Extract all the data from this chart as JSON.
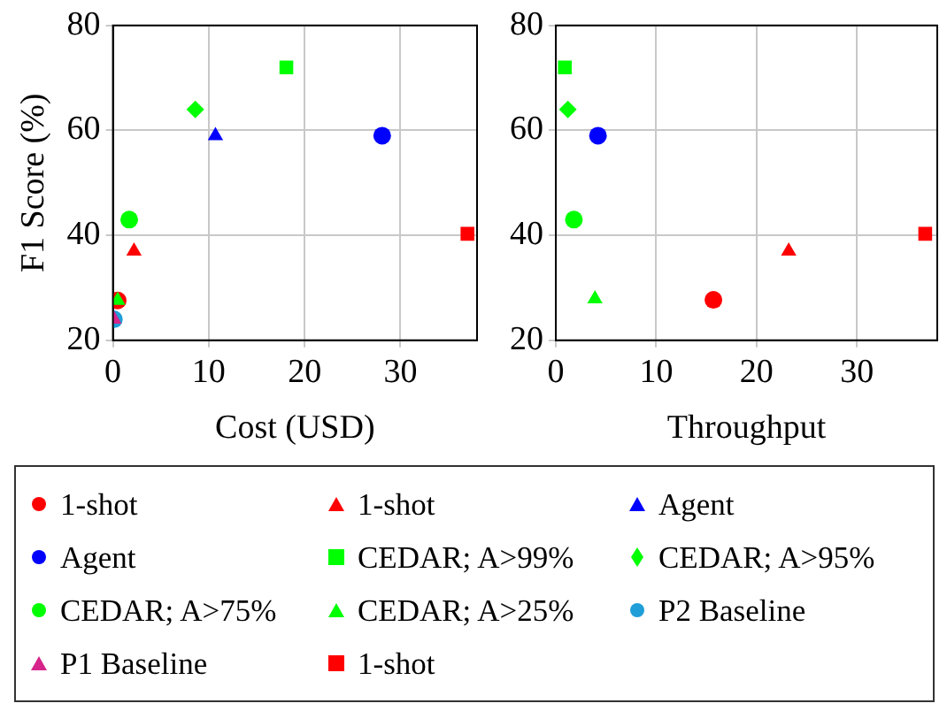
{
  "chart_data": [
    {
      "type": "scatter",
      "xlabel": "Cost (USD)",
      "ylabel": "F1 Score (%)",
      "xlim": [
        0,
        38
      ],
      "xticks": [
        0,
        10,
        20,
        30
      ],
      "ylim": [
        20,
        80
      ],
      "yticks": [
        20,
        40,
        60,
        80
      ],
      "grid": true,
      "legend": "bottom",
      "series": [
        {
          "name": "1-shot",
          "color": "#ff0000",
          "marker": "circle",
          "x": [
            0.5
          ],
          "values": [
            27.6
          ]
        },
        {
          "name": "1-shot",
          "color": "#ff0000",
          "marker": "triangle",
          "x": [
            2.2
          ],
          "values": [
            37
          ]
        },
        {
          "name": "Agent",
          "color": "#0000ff",
          "marker": "triangle",
          "x": [
            10.7
          ],
          "values": [
            59
          ]
        },
        {
          "name": "Agent",
          "color": "#0000ff",
          "marker": "circle",
          "x": [
            28.1
          ],
          "values": [
            59
          ]
        },
        {
          "name": "CEDAR; A>99%",
          "color": "#00ff00",
          "marker": "square",
          "x": [
            18.1
          ],
          "values": [
            72
          ]
        },
        {
          "name": "CEDAR; A>95%",
          "color": "#00ff00",
          "marker": "diamond",
          "x": [
            8.6
          ],
          "values": [
            64
          ]
        },
        {
          "name": "CEDAR; A>75%",
          "color": "#00ff00",
          "marker": "circle",
          "x": [
            1.7
          ],
          "values": [
            43
          ]
        },
        {
          "name": "CEDAR; A>25%",
          "color": "#00ff00",
          "marker": "triangle",
          "x": [
            0.5
          ],
          "values": [
            27.6
          ]
        },
        {
          "name": "P2 Baseline",
          "color": "#1f9ed8",
          "marker": "circle",
          "x": [
            0.1
          ],
          "values": [
            24
          ]
        },
        {
          "name": "P1 Baseline",
          "color": "#d6258a",
          "marker": "triangle",
          "x": [
            0.1
          ],
          "values": [
            24
          ]
        },
        {
          "name": "1-shot",
          "color": "#ff0000",
          "marker": "square",
          "x": [
            37
          ],
          "values": [
            40.3
          ]
        }
      ]
    },
    {
      "type": "scatter",
      "xlabel": "Throughput",
      "xlim": [
        0,
        38
      ],
      "xticks": [
        0,
        10,
        20,
        30
      ],
      "ylim": [
        20,
        80
      ],
      "yticks": [
        20,
        40,
        60,
        80
      ],
      "grid": true,
      "series": [
        {
          "color": "#ff0000",
          "marker": "circle",
          "x": [
            15.7
          ],
          "values": [
            27.7
          ]
        },
        {
          "color": "#ff0000",
          "marker": "triangle",
          "x": [
            23.2
          ],
          "values": [
            37
          ]
        },
        {
          "color": "#0000ff",
          "marker": "circle",
          "x": [
            4.2
          ],
          "values": [
            59
          ]
        },
        {
          "color": "#00ff00",
          "marker": "square",
          "x": [
            0.9
          ],
          "values": [
            72
          ]
        },
        {
          "color": "#00ff00",
          "marker": "diamond",
          "x": [
            1.2
          ],
          "values": [
            64
          ]
        },
        {
          "color": "#00ff00",
          "marker": "circle",
          "x": [
            1.8
          ],
          "values": [
            43
          ]
        },
        {
          "color": "#00ff00",
          "marker": "triangle",
          "x": [
            3.9
          ],
          "values": [
            27.9
          ]
        },
        {
          "color": "#ff0000",
          "marker": "square",
          "x": [
            36.8
          ],
          "values": [
            40.3
          ]
        }
      ]
    }
  ]
}
